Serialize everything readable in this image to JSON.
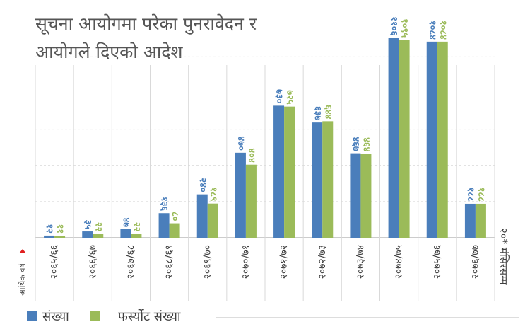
{
  "chart_data": {
    "type": "bar",
    "title": [
      "सूचना आयोगमा परेका पुनरावेदन र",
      "आयोगले दिएको आदेश"
    ],
    "x_label": "आर्थिक वर्ष",
    "annotation": "२०* मंसिरसम्म",
    "categories": [
      "२०६५/६६",
      "२०६६/६७",
      "२०६७/६८",
      "२०६८/६९",
      "२०६९/७०",
      "२०७०/७१",
      "२०७१/७२",
      "२०७२/७३",
      "२०७३/७४",
      "२०७४/७५",
      "२०७५/७६",
      "२०७६/७७"
    ],
    "series": [
      {
        "name": "संख्या",
        "color": "#4a7ebb",
        "values": [
          12,
          35,
          47,
          136,
          240,
          470,
          730,
          637,
          467,
          1106,
          1084,
          188
        ],
        "value_labels": [
          "१२",
          "३५",
          "४७",
          "१३६",
          "२४०",
          "४७०",
          "७३०",
          "६३७",
          "४६७",
          "११०६",
          "१०८४",
          "१८८"
        ]
      },
      {
        "name": "फर्स्योट संख्या",
        "color": "#9bbb59",
        "values": [
          11,
          22,
          22,
          80,
          189,
          404,
          725,
          644,
          464,
          1095,
          1084,
          188
        ],
        "value_labels": [
          "११",
          "२२",
          "२२",
          "८०",
          "१८९",
          "४०४",
          "७२५",
          "६४४",
          "४६४",
          "१०९५",
          "१०८४",
          "१८८"
        ]
      }
    ],
    "ylim": [
      0,
      1150
    ],
    "yticks": [
      0,
      200,
      400,
      600,
      800,
      1000
    ],
    "grid": true
  }
}
